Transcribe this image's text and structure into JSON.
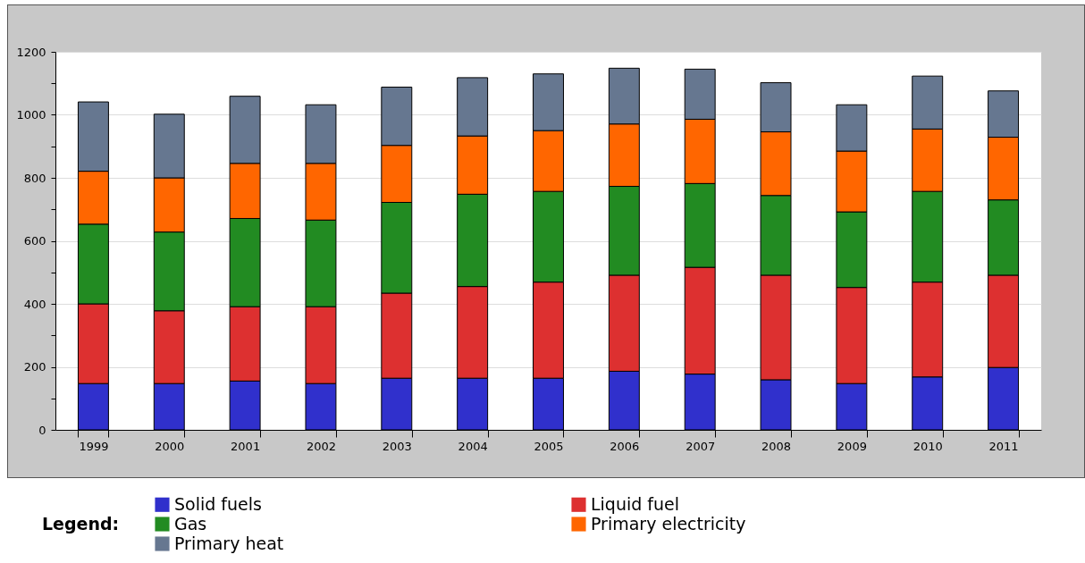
{
  "chart_data": {
    "type": "bar",
    "stacked": true,
    "legend_title": "Legend:",
    "legend": "bottom left",
    "grid": "y",
    "categories": [
      "1999",
      "2000",
      "2001",
      "2002",
      "2003",
      "2004",
      "2005",
      "2006",
      "2007",
      "2008",
      "2009",
      "2010",
      "2011"
    ],
    "ylim": [
      0,
      1200
    ],
    "yticks": [
      0,
      {
        "value": 100,
        "label": null
      },
      200,
      {
        "value": 300,
        "label": null
      },
      400,
      {
        "value": 500,
        "label": null
      },
      600,
      {
        "value": 700,
        "label": null
      },
      800,
      {
        "value": 900,
        "label": null
      },
      1000,
      {
        "value": 1100,
        "label": null
      },
      1200
    ],
    "series": [
      {
        "name": "Solid fuels",
        "color": "#3030cc",
        "values": [
          147,
          147,
          155,
          147,
          164,
          164,
          164,
          186,
          177,
          159,
          147,
          168,
          198
        ]
      },
      {
        "name": "Liquid fuel",
        "color": "#dd3030",
        "values": [
          253,
          231,
          236,
          244,
          270,
          291,
          305,
          305,
          339,
          332,
          305,
          301,
          293
        ]
      },
      {
        "name": "Gas",
        "color": "#228b22",
        "values": [
          253,
          250,
          280,
          275,
          288,
          293,
          288,
          282,
          266,
          253,
          240,
          288,
          239
        ]
      },
      {
        "name": "Primary electricity",
        "color": "#ff6600",
        "values": [
          168,
          172,
          175,
          180,
          181,
          185,
          193,
          198,
          204,
          202,
          193,
          198,
          199
        ]
      },
      {
        "name": "Primary heat",
        "color": "#667790",
        "values": [
          220,
          202,
          213,
          186,
          185,
          185,
          180,
          177,
          159,
          156,
          147,
          168,
          147
        ]
      }
    ]
  }
}
